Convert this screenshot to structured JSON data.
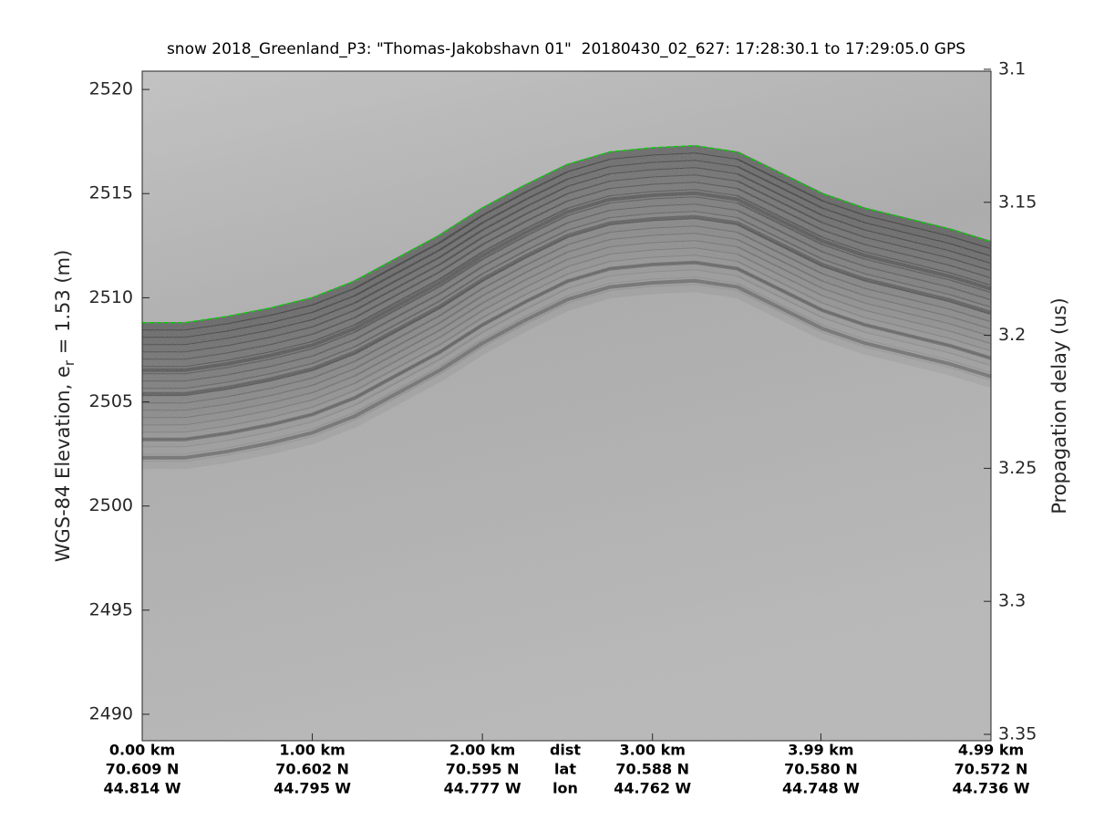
{
  "chart_data": {
    "type": "echogram",
    "title": "snow 2018_Greenland_P3: \"Thomas-Jakobshavn 01\"  20180430_02_627: 17:28:30.1 to 17:29:05.0 GPS",
    "ylabel_parts": [
      "WGS-84 Elevation, e",
      "r",
      " = 1.53 (m)"
    ],
    "y2label": "Propagation delay (us)",
    "ylim": [
      2488.73,
      2520.88
    ],
    "yticks": [
      2490,
      2495,
      2500,
      2505,
      2510,
      2515,
      2520
    ],
    "y2lim": [
      3.3524,
      3.1007
    ],
    "y2ticks": [
      3.1,
      3.15,
      3.2,
      3.25,
      3.3,
      3.35
    ],
    "xlim": [
      0,
      4.99
    ],
    "xticks": [
      {
        "value": 0,
        "label": "0.00 km"
      },
      {
        "value": 1,
        "label": "1.00 km"
      },
      {
        "value": 2,
        "label": "2.00 km"
      },
      {
        "value": 3,
        "label": "3.00 km"
      },
      {
        "value": 3.99,
        "label": "3.99 km"
      },
      {
        "value": 4.99,
        "label": "4.99 km"
      }
    ],
    "lat_labels": [
      "70.609 N",
      "70.602 N",
      "70.595 N",
      "70.588 N",
      "70.580 N",
      "70.572 N"
    ],
    "lon_labels": [
      "44.814 W",
      "44.795 W",
      "44.777 W",
      "44.762 W",
      "44.748 W",
      "44.736 W"
    ],
    "row_labels": [
      "dist",
      "lat",
      "lon"
    ],
    "x": [
      0,
      0.25,
      0.5,
      0.75,
      1.0,
      1.25,
      1.5,
      1.75,
      2.0,
      2.25,
      2.5,
      2.75,
      3.0,
      3.25,
      3.5,
      3.75,
      4.0,
      4.25,
      4.5,
      4.75,
      4.99
    ],
    "series": [
      {
        "name": "surface",
        "color": "#00d000",
        "values": [
          2508.8,
          2508.8,
          2509.1,
          2509.5,
          2510.0,
          2510.8,
          2511.9,
          2513.0,
          2514.3,
          2515.4,
          2516.4,
          2517.0,
          2517.2,
          2517.3,
          2517.0,
          2516.0,
          2515.0,
          2514.3,
          2513.8,
          2513.3,
          2512.7
        ]
      }
    ]
  }
}
